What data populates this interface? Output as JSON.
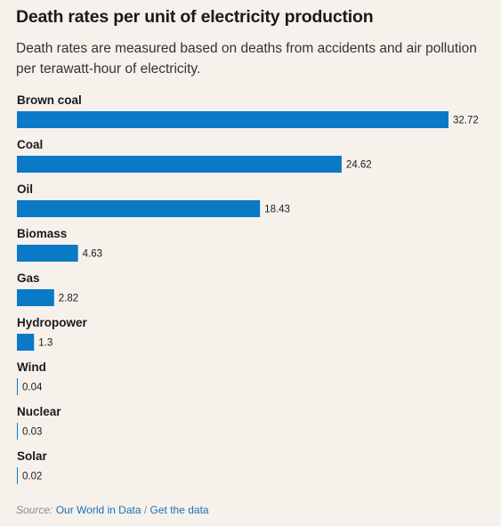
{
  "chart_data": {
    "type": "bar",
    "orientation": "horizontal",
    "title": "Death rates per unit of electricity production",
    "subtitle": "Death rates are measured based on deaths from accidents and air pollution per terawatt-hour of electricity.",
    "categories": [
      "Brown coal",
      "Coal",
      "Oil",
      "Biomass",
      "Gas",
      "Hydropower",
      "Wind",
      "Nuclear",
      "Solar"
    ],
    "values": [
      32.72,
      24.62,
      18.43,
      4.63,
      2.82,
      1.3,
      0.04,
      0.03,
      0.02
    ],
    "value_labels": [
      "32.72",
      "24.62",
      "18.43",
      "4.63",
      "2.82",
      "1.3",
      "0.04",
      "0.03",
      "0.02"
    ],
    "xlim": [
      0,
      32.72
    ],
    "grid": false,
    "bar_color": "#0a79c6"
  },
  "source": {
    "prefix": "Source:",
    "link1": "Our World in Data",
    "separator": "/",
    "link2": "Get the data"
  }
}
